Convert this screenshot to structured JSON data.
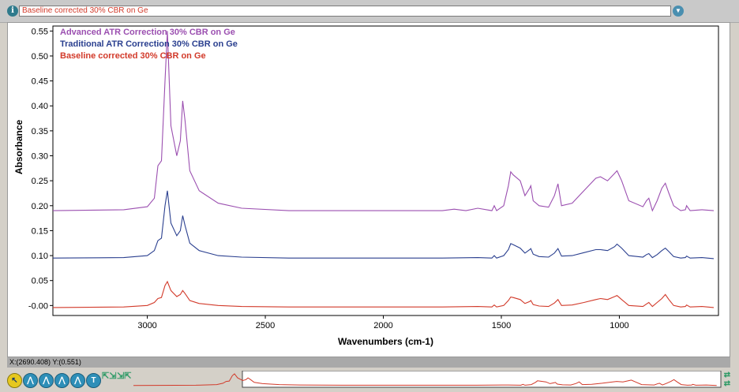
{
  "header": {
    "info_icon": "info-icon",
    "selected_spectrum": "Baseline corrected 30% CBR on Ge",
    "dropdown_icon": "dropdown-arrow-icon"
  },
  "status": {
    "coordinates": "X:(2690.408) Y:(0.551)"
  },
  "toolbar": {
    "buttons": [
      {
        "name": "select-tool-button",
        "icon": "arrow-cursor-icon",
        "glyph": "↖",
        "active": true
      },
      {
        "name": "region-tool-button",
        "icon": "region-icon",
        "glyph": "⋀"
      },
      {
        "name": "peak-label-tool-button",
        "icon": "peak-label-icon",
        "glyph": "⋀"
      },
      {
        "name": "peak-height-tool-button",
        "icon": "peak-height-icon",
        "glyph": "⋀"
      },
      {
        "name": "peak-area-tool-button",
        "icon": "peak-area-icon",
        "glyph": "⋀"
      },
      {
        "name": "text-tool-button",
        "icon": "text-icon",
        "glyph": "T"
      }
    ],
    "expand_icon": "expand-arrows-icon",
    "contract_icon": "contract-arrows-icon",
    "scroll_icon": "scroll-arrows-icon"
  },
  "chart_data": {
    "type": "line",
    "title": "",
    "xlabel": "Wavenumbers (cm-1)",
    "ylabel": "Absorbance",
    "xlim": [
      3400,
      580
    ],
    "ylim": [
      -0.02,
      0.56
    ],
    "x_reversed": true,
    "grid": false,
    "x_ticks": [
      3000,
      2500,
      2000,
      1500,
      1000
    ],
    "x_tick_labels": [
      "3000",
      "2500",
      "2000",
      "1500",
      "1000"
    ],
    "y_ticks": [
      0.0,
      0.05,
      0.1,
      0.15,
      0.2,
      0.25,
      0.3,
      0.35,
      0.4,
      0.45,
      0.5,
      0.55
    ],
    "y_tick_labels": [
      "-0.00",
      "0.05",
      "0.10",
      "0.15",
      "0.20",
      "0.25",
      "0.30",
      "0.35",
      "0.40",
      "0.45",
      "0.50",
      "0.55"
    ],
    "legend_position": "top-left",
    "series": [
      {
        "name": "Advanced ATR Correction 30% CBR on Ge",
        "color": "#9b4fb0",
        "x": [
          3400,
          3100,
          3000,
          2970,
          2955,
          2940,
          2925,
          2915,
          2900,
          2875,
          2860,
          2850,
          2840,
          2820,
          2780,
          2700,
          2600,
          2400,
          2000,
          1750,
          1700,
          1650,
          1600,
          1540,
          1530,
          1520,
          1490,
          1470,
          1460,
          1450,
          1420,
          1400,
          1380,
          1375,
          1365,
          1340,
          1300,
          1275,
          1260,
          1245,
          1200,
          1150,
          1100,
          1080,
          1050,
          1020,
          1010,
          990,
          960,
          900,
          885,
          875,
          860,
          840,
          820,
          805,
          790,
          770,
          740,
          720,
          715,
          700,
          650,
          600
        ],
        "y": [
          0.19,
          0.192,
          0.198,
          0.215,
          0.28,
          0.29,
          0.45,
          0.55,
          0.36,
          0.3,
          0.33,
          0.41,
          0.37,
          0.27,
          0.23,
          0.205,
          0.195,
          0.19,
          0.19,
          0.19,
          0.193,
          0.19,
          0.195,
          0.19,
          0.2,
          0.19,
          0.2,
          0.24,
          0.268,
          0.262,
          0.25,
          0.22,
          0.235,
          0.24,
          0.21,
          0.2,
          0.197,
          0.22,
          0.244,
          0.2,
          0.205,
          0.23,
          0.255,
          0.258,
          0.25,
          0.265,
          0.27,
          0.25,
          0.21,
          0.198,
          0.21,
          0.215,
          0.19,
          0.21,
          0.235,
          0.245,
          0.225,
          0.2,
          0.19,
          0.192,
          0.2,
          0.19,
          0.192,
          0.19
        ]
      },
      {
        "name": "Traditional ATR Correction 30% CBR on Ge",
        "color": "#2a3f8f",
        "x": [
          3400,
          3100,
          3000,
          2970,
          2955,
          2940,
          2925,
          2915,
          2900,
          2875,
          2860,
          2850,
          2840,
          2820,
          2780,
          2700,
          2600,
          2400,
          2000,
          1750,
          1600,
          1540,
          1530,
          1520,
          1490,
          1470,
          1460,
          1450,
          1420,
          1400,
          1380,
          1375,
          1365,
          1340,
          1300,
          1275,
          1260,
          1245,
          1200,
          1150,
          1100,
          1080,
          1050,
          1020,
          1010,
          990,
          960,
          900,
          885,
          875,
          860,
          840,
          820,
          805,
          790,
          770,
          740,
          720,
          715,
          700,
          650,
          600
        ],
        "y": [
          0.095,
          0.096,
          0.1,
          0.11,
          0.13,
          0.135,
          0.2,
          0.23,
          0.165,
          0.14,
          0.15,
          0.18,
          0.16,
          0.125,
          0.11,
          0.1,
          0.097,
          0.095,
          0.095,
          0.095,
          0.096,
          0.095,
          0.1,
          0.095,
          0.1,
          0.112,
          0.124,
          0.122,
          0.115,
          0.105,
          0.112,
          0.114,
          0.103,
          0.098,
          0.097,
          0.105,
          0.114,
          0.099,
          0.1,
          0.106,
          0.112,
          0.112,
          0.11,
          0.118,
          0.123,
          0.115,
          0.1,
          0.097,
          0.102,
          0.104,
          0.096,
          0.102,
          0.11,
          0.115,
          0.108,
          0.098,
          0.095,
          0.096,
          0.099,
          0.095,
          0.096,
          0.094
        ]
      },
      {
        "name": "Baseline corrected 30% CBR on Ge",
        "color": "#d23a2a",
        "x": [
          3400,
          3100,
          3000,
          2970,
          2955,
          2940,
          2925,
          2915,
          2900,
          2875,
          2860,
          2850,
          2840,
          2820,
          2780,
          2700,
          2600,
          2400,
          2000,
          1750,
          1600,
          1540,
          1530,
          1520,
          1490,
          1470,
          1460,
          1450,
          1420,
          1400,
          1380,
          1375,
          1365,
          1340,
          1300,
          1275,
          1260,
          1245,
          1200,
          1150,
          1100,
          1080,
          1050,
          1020,
          1010,
          990,
          960,
          900,
          885,
          875,
          860,
          840,
          820,
          805,
          790,
          770,
          740,
          720,
          715,
          700,
          650,
          600
        ],
        "y": [
          -0.004,
          -0.003,
          0.0,
          0.006,
          0.014,
          0.016,
          0.04,
          0.048,
          0.03,
          0.018,
          0.022,
          0.03,
          0.024,
          0.01,
          0.004,
          0.0,
          -0.002,
          -0.003,
          -0.003,
          -0.003,
          -0.002,
          -0.003,
          0.001,
          -0.003,
          0.0,
          0.01,
          0.017,
          0.016,
          0.012,
          0.004,
          0.008,
          0.01,
          0.002,
          -0.001,
          -0.002,
          0.005,
          0.012,
          0.0,
          0.001,
          0.006,
          0.012,
          0.014,
          0.012,
          0.018,
          0.02,
          0.012,
          0.0,
          -0.002,
          0.003,
          0.006,
          -0.002,
          0.006,
          0.014,
          0.022,
          0.012,
          0.0,
          -0.003,
          -0.002,
          0.001,
          -0.003,
          -0.002,
          -0.004
        ]
      }
    ]
  }
}
